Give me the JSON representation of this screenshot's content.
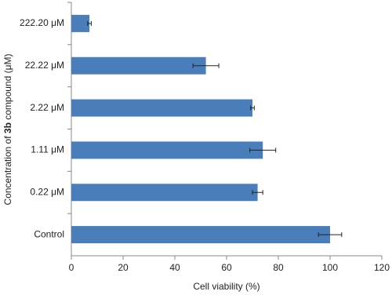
{
  "chart_data": {
    "type": "bar",
    "orientation": "horizontal",
    "xlabel": "Cell viability (%)",
    "ylabel": [
      "Concentration of ",
      "3b",
      " compound (μM)"
    ],
    "categories": [
      "222.20 μM",
      "22.22 μM",
      "2.22 μM",
      "1.11 μM",
      "0.22 μM",
      "Control"
    ],
    "values": [
      7,
      52,
      70,
      74,
      72,
      100
    ],
    "errors": [
      0.7,
      5,
      0.7,
      5,
      2,
      4.5
    ],
    "color": "#4a7ebb",
    "xlim": [
      0,
      120
    ],
    "xticks": [
      0,
      20,
      40,
      60,
      80,
      100,
      120
    ],
    "grid": false
  }
}
